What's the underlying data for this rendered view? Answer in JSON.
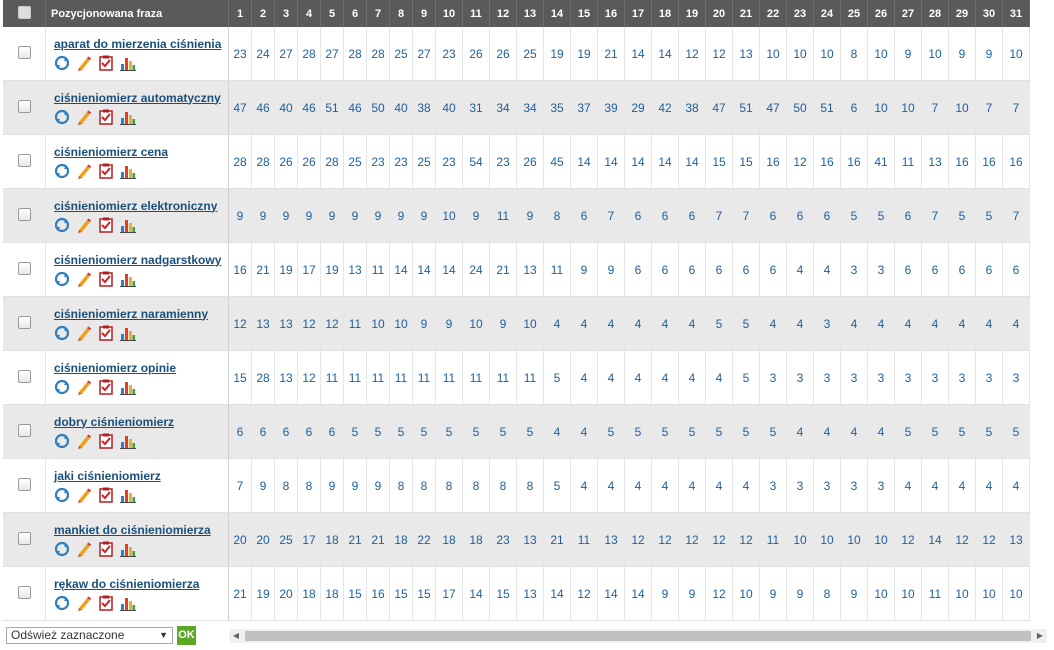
{
  "header": {
    "phrase": "Pozycjonowana fraza",
    "days": [
      "1",
      "2",
      "3",
      "4",
      "5",
      "6",
      "7",
      "8",
      "9",
      "10",
      "11",
      "12",
      "13",
      "14",
      "15",
      "16",
      "17",
      "18",
      "19",
      "20",
      "21",
      "22",
      "23",
      "24",
      "25",
      "26",
      "27",
      "28",
      "29",
      "30",
      "31"
    ]
  },
  "rows": [
    {
      "phrase": "aparat do mierzenia ciśnienia",
      "values": [
        "23",
        "24",
        "27",
        "28",
        "27",
        "28",
        "28",
        "25",
        "27",
        "23",
        "26",
        "26",
        "25",
        "19",
        "19",
        "21",
        "14",
        "14",
        "12",
        "12",
        "13",
        "10",
        "10",
        "10",
        "8",
        "10",
        "9",
        "10",
        "9",
        "9",
        "10"
      ]
    },
    {
      "phrase": "ciśnieniomierz automatyczny",
      "values": [
        "47",
        "46",
        "40",
        "46",
        "51",
        "46",
        "50",
        "40",
        "38",
        "40",
        "31",
        "34",
        "34",
        "35",
        "37",
        "39",
        "29",
        "42",
        "38",
        "47",
        "51",
        "47",
        "50",
        "51",
        "6",
        "10",
        "10",
        "7",
        "10",
        "7",
        "7"
      ]
    },
    {
      "phrase": "ciśnieniomierz cena",
      "values": [
        "28",
        "28",
        "26",
        "26",
        "28",
        "25",
        "23",
        "23",
        "25",
        "23",
        "54",
        "23",
        "26",
        "45",
        "14",
        "14",
        "14",
        "14",
        "14",
        "15",
        "15",
        "16",
        "12",
        "16",
        "16",
        "41",
        "11",
        "13",
        "16",
        "16",
        "16"
      ]
    },
    {
      "phrase": "ciśnieniomierz elektroniczny",
      "values": [
        "9",
        "9",
        "9",
        "9",
        "9",
        "9",
        "9",
        "9",
        "9",
        "10",
        "9",
        "11",
        "9",
        "8",
        "6",
        "7",
        "6",
        "6",
        "6",
        "7",
        "7",
        "6",
        "6",
        "6",
        "5",
        "5",
        "6",
        "7",
        "5",
        "5",
        "7"
      ]
    },
    {
      "phrase": "ciśnieniomierz nadgarstkowy",
      "values": [
        "16",
        "21",
        "19",
        "17",
        "19",
        "13",
        "11",
        "14",
        "14",
        "14",
        "24",
        "21",
        "13",
        "11",
        "9",
        "9",
        "6",
        "6",
        "6",
        "6",
        "6",
        "6",
        "4",
        "4",
        "3",
        "3",
        "6",
        "6",
        "6",
        "6",
        "6"
      ]
    },
    {
      "phrase": "ciśnieniomierz naramienny",
      "values": [
        "12",
        "13",
        "13",
        "12",
        "12",
        "11",
        "10",
        "10",
        "9",
        "9",
        "10",
        "9",
        "10",
        "4",
        "4",
        "4",
        "4",
        "4",
        "4",
        "5",
        "5",
        "4",
        "4",
        "3",
        "4",
        "4",
        "4",
        "4",
        "4",
        "4",
        "4"
      ]
    },
    {
      "phrase": "ciśnieniomierz opinie",
      "values": [
        "15",
        "28",
        "13",
        "12",
        "11",
        "11",
        "11",
        "11",
        "11",
        "11",
        "11",
        "11",
        "11",
        "5",
        "4",
        "4",
        "4",
        "4",
        "4",
        "4",
        "5",
        "3",
        "3",
        "3",
        "3",
        "3",
        "3",
        "3",
        "3",
        "3",
        "3"
      ]
    },
    {
      "phrase": "dobry ciśnieniomierz",
      "values": [
        "6",
        "6",
        "6",
        "6",
        "6",
        "5",
        "5",
        "5",
        "5",
        "5",
        "5",
        "5",
        "5",
        "4",
        "4",
        "5",
        "5",
        "5",
        "5",
        "5",
        "5",
        "5",
        "4",
        "4",
        "4",
        "4",
        "5",
        "5",
        "5",
        "5",
        "5"
      ]
    },
    {
      "phrase": "jaki ciśnieniomierz",
      "values": [
        "7",
        "9",
        "8",
        "8",
        "9",
        "9",
        "9",
        "8",
        "8",
        "8",
        "8",
        "8",
        "8",
        "5",
        "4",
        "4",
        "4",
        "4",
        "4",
        "4",
        "4",
        "3",
        "3",
        "3",
        "3",
        "3",
        "4",
        "4",
        "4",
        "4",
        "4"
      ]
    },
    {
      "phrase": "mankiet do ciśnieniomierza",
      "values": [
        "20",
        "20",
        "25",
        "17",
        "18",
        "21",
        "21",
        "18",
        "22",
        "18",
        "18",
        "23",
        "13",
        "21",
        "11",
        "13",
        "12",
        "12",
        "12",
        "12",
        "12",
        "11",
        "10",
        "10",
        "10",
        "10",
        "12",
        "14",
        "12",
        "12",
        "13"
      ]
    },
    {
      "phrase": "rękaw do ciśnieniomierza",
      "values": [
        "21",
        "19",
        "20",
        "18",
        "18",
        "15",
        "16",
        "15",
        "15",
        "17",
        "14",
        "15",
        "13",
        "14",
        "12",
        "14",
        "14",
        "9",
        "9",
        "12",
        "10",
        "9",
        "9",
        "8",
        "9",
        "10",
        "10",
        "11",
        "10",
        "10",
        "10"
      ]
    }
  ],
  "footer": {
    "select_value": "Odśwież zaznaczone",
    "ok_label": "OK"
  },
  "icons": [
    "refresh-icon",
    "edit-icon",
    "checklist-icon",
    "chart-icon"
  ],
  "colors": {
    "header_bg": "#5a5a5a",
    "link": "#1a4f7a",
    "value": "#1f5f9c",
    "row_alt": "#e9e9e9",
    "ok": "#5aa824"
  }
}
